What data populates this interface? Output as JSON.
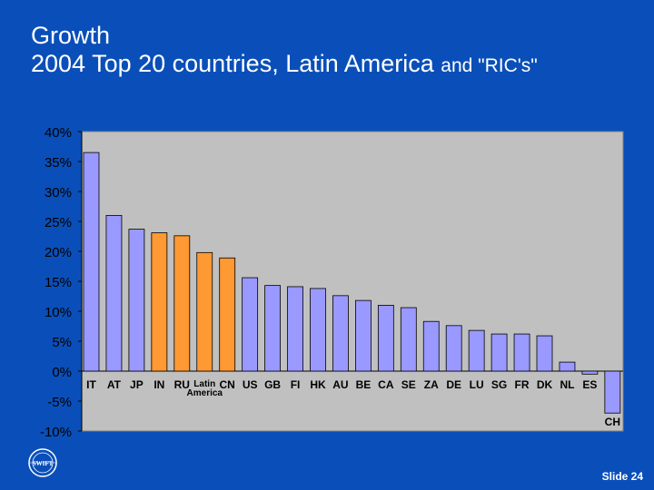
{
  "slide": {
    "title_line1": "Growth",
    "title_line2_main": "2004 Top 20 countries, Latin America ",
    "title_line2_small": "and \"RIC's\"",
    "slide_number": "Slide 24",
    "logo_text": "SWIFT"
  },
  "colors": {
    "background": "#0a4fb9",
    "plot_bg": "#c0c0c0",
    "bar_default": "#9999ff",
    "bar_highlight": "#ff9933",
    "bar_stroke": "#000000"
  },
  "chart_data": {
    "type": "bar",
    "title": "2004 Top 20 countries, Latin America and \"RIC's\"",
    "xlabel": "",
    "ylabel": "",
    "ylim": [
      -10,
      40
    ],
    "yticks": [
      40,
      35,
      30,
      25,
      20,
      15,
      10,
      5,
      0,
      -5,
      -10
    ],
    "ytick_labels": [
      "40%",
      "35%",
      "30%",
      "25%",
      "20%",
      "15%",
      "10%",
      "5%",
      "0%",
      "-5%",
      "-10%"
    ],
    "grid": false,
    "categories": [
      "IT",
      "AT",
      "JP",
      "IN",
      "RU",
      "Latin America",
      "CN",
      "US",
      "GB",
      "FI",
      "HK",
      "AU",
      "BE",
      "CA",
      "SE",
      "ZA",
      "DE",
      "LU",
      "SG",
      "FR",
      "DK",
      "NL",
      "ES",
      "CH"
    ],
    "category_labels": [
      "IT",
      "AT",
      "JP",
      "IN",
      "RU",
      "Latin\nAmerica",
      "CN",
      "US",
      "GB",
      "FI",
      "HK",
      "AU",
      "BE",
      "CA",
      "SE",
      "ZA",
      "DE",
      "LU",
      "SG",
      "FR",
      "DK",
      "NL",
      "ES",
      "CH"
    ],
    "values": [
      36.5,
      26,
      23.7,
      23.1,
      22.6,
      19.8,
      18.9,
      15.6,
      14.3,
      14.1,
      13.8,
      12.6,
      11.8,
      11,
      10.6,
      8.3,
      7.6,
      6.8,
      6.2,
      6.2,
      5.9,
      1.5,
      -0.5,
      -7
    ],
    "highlight": [
      "IN",
      "RU",
      "Latin America",
      "CN"
    ]
  }
}
